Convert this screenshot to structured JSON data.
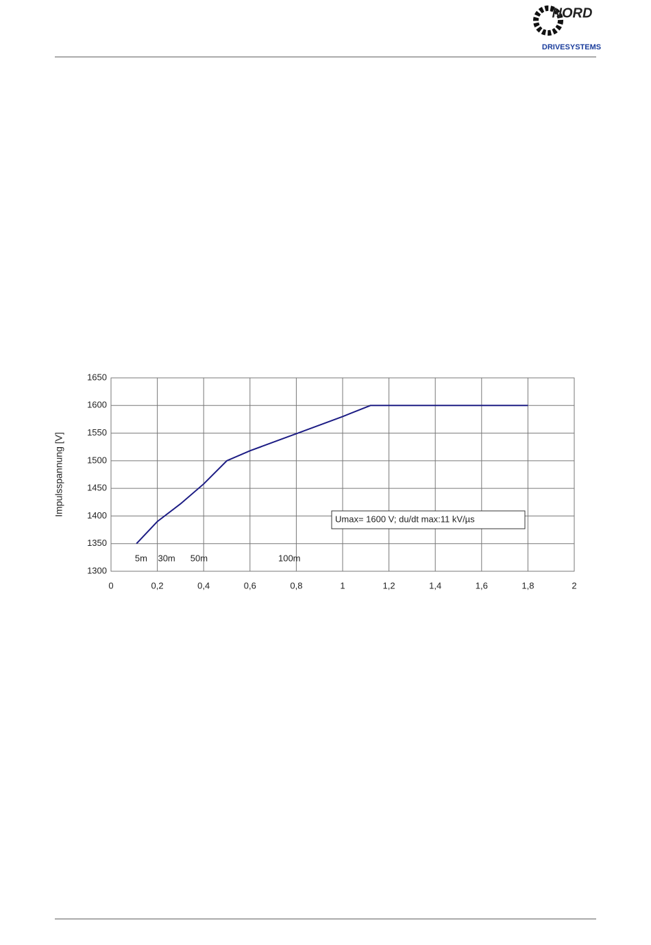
{
  "header": {
    "logo_top": "NORD",
    "logo_bottom": "DRIVESYSTEMS"
  },
  "chart_data": {
    "type": "line",
    "y_label": "Impulsspannung [V]",
    "x": [
      0.11,
      0.2,
      0.3,
      0.4,
      0.5,
      0.6,
      0.8,
      1,
      1.12,
      1.8
    ],
    "series": [
      {
        "color": "#1c1c84",
        "values": [
          1350,
          1390,
          1422,
          1458,
          1500,
          1518,
          1549,
          1580,
          1600,
          1600
        ]
      }
    ],
    "xlim": [
      0,
      2
    ],
    "xticks": [
      0,
      {
        "value": 0.2,
        "label": "0,2"
      },
      {
        "value": 0.4,
        "label": "0,4"
      },
      {
        "value": 0.6,
        "label": "0,6"
      },
      {
        "value": 0.8,
        "label": "0,8"
      },
      1,
      {
        "value": 1.2,
        "label": "1,2"
      },
      {
        "value": 1.4,
        "label": "1,4"
      },
      {
        "value": 1.6,
        "label": "1,6"
      },
      {
        "value": 1.8,
        "label": "1,8"
      },
      2
    ],
    "ylim": [
      1300,
      1650
    ],
    "yticks": [
      1300,
      1350,
      1400,
      1450,
      1500,
      1550,
      1600,
      1650
    ],
    "grid": true,
    "annotations": [
      {
        "text": "5m",
        "x": 0.13
      },
      {
        "text": "30m",
        "x": 0.24
      },
      {
        "text": "50m",
        "x": 0.38
      },
      {
        "text": "100m",
        "x": 0.77
      }
    ],
    "note": "Umax= 1600 V; du/dt max:11 kV/µs"
  }
}
